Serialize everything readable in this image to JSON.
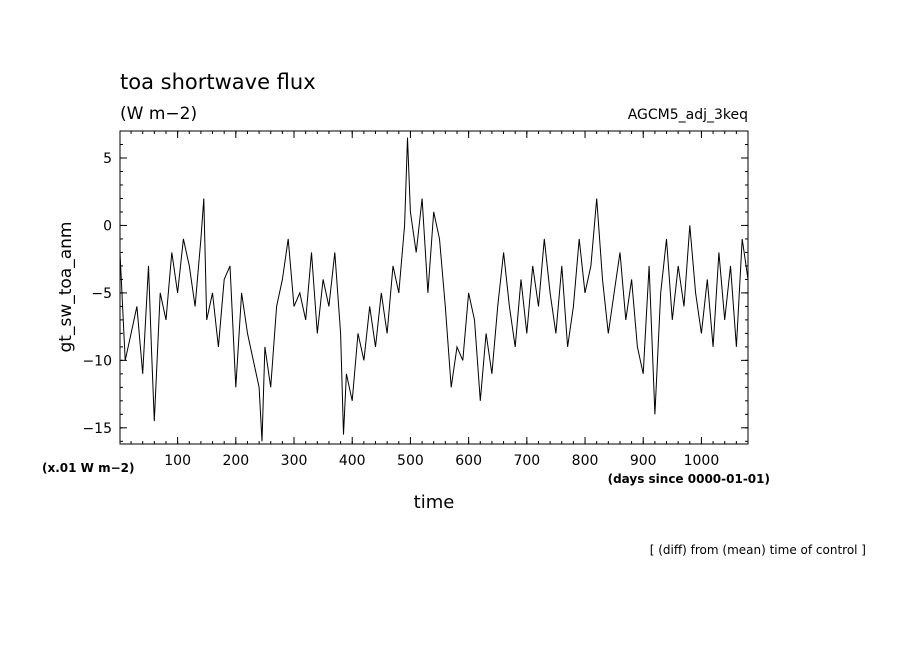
{
  "chart_data": {
    "type": "line",
    "title": "toa shortwave flux",
    "units": "(W m−2)",
    "model_label": "AGCM5_adj_3keq",
    "ylabel": "gt_sw_toa_anm",
    "xlabel": "time",
    "y_scale_note": "(x.01 W m−2)",
    "x_units_note": "(days since 0000-01-01)",
    "footnote": "[ (diff) from (mean) time of control ]",
    "xlim": [
      1,
      1080
    ],
    "ylim": [
      -16.2,
      7
    ],
    "x_ticks": [
      100,
      200,
      300,
      400,
      500,
      600,
      700,
      800,
      900,
      1000
    ],
    "y_ticks": [
      5,
      0,
      -5,
      -10,
      -15
    ],
    "grid": false,
    "line_color": "#000000",
    "series": [
      {
        "x": [
          1,
          10,
          20,
          30,
          40,
          50,
          55,
          60,
          70,
          80,
          90,
          100,
          110,
          120,
          130,
          140,
          145,
          150,
          160,
          170,
          180,
          190,
          200,
          210,
          220,
          230,
          240,
          245,
          250,
          260,
          270,
          280,
          290,
          300,
          310,
          320,
          330,
          340,
          350,
          360,
          370,
          380,
          385,
          390,
          400,
          410,
          420,
          430,
          440,
          450,
          460,
          470,
          480,
          490,
          495,
          500,
          510,
          520,
          530,
          540,
          550,
          560,
          570,
          580,
          590,
          600,
          610,
          620,
          630,
          640,
          650,
          660,
          670,
          680,
          690,
          700,
          710,
          720,
          730,
          740,
          750,
          760,
          770,
          780,
          790,
          800,
          810,
          820,
          830,
          840,
          850,
          860,
          870,
          880,
          890,
          900,
          910,
          920,
          930,
          940,
          950,
          960,
          970,
          980,
          990,
          1000,
          1010,
          1020,
          1030,
          1040,
          1050,
          1060,
          1070,
          1080
        ],
        "values": [
          -2,
          -10,
          -8,
          -6,
          -11,
          -3,
          -9,
          -14.5,
          -5,
          -7,
          -2,
          -5,
          -1,
          -3,
          -6,
          -1,
          2,
          -7,
          -5,
          -9,
          -4,
          -3,
          -12,
          -5,
          -8,
          -10,
          -12,
          -16,
          -9,
          -12,
          -6,
          -4,
          -1,
          -6,
          -5,
          -7,
          -2,
          -8,
          -4,
          -6,
          -2,
          -8,
          -15.5,
          -11,
          -13,
          -8,
          -10,
          -6,
          -9,
          -5,
          -8,
          -3,
          -5,
          0,
          6.5,
          1,
          -2,
          2,
          -5,
          1,
          -1,
          -6,
          -12,
          -9,
          -10,
          -5,
          -7,
          -13,
          -8,
          -11,
          -6,
          -2,
          -6,
          -9,
          -4,
          -8,
          -3,
          -6,
          -1,
          -5,
          -8,
          -3,
          -9,
          -6,
          -1,
          -5,
          -3,
          2,
          -4,
          -8,
          -5,
          -2,
          -7,
          -4,
          -9,
          -11,
          -3,
          -14,
          -5,
          -1,
          -7,
          -3,
          -6,
          0,
          -5,
          -8,
          -4,
          -9,
          -2,
          -7,
          -3,
          -9,
          -1,
          -4
        ]
      }
    ]
  }
}
